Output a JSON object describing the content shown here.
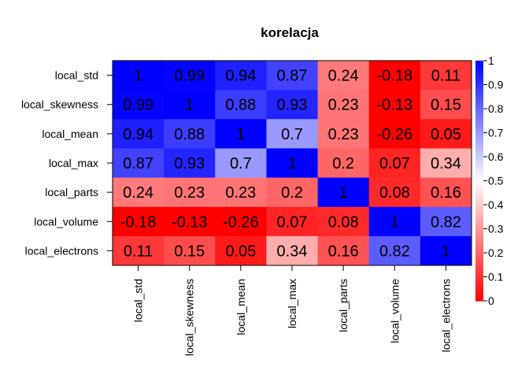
{
  "chart_data": {
    "type": "heatmap",
    "title": "korelacja",
    "rows": [
      "local_std",
      "local_skewness",
      "local_mean",
      "local_max",
      "local_parts",
      "local_volume",
      "local_electrons"
    ],
    "columns": [
      "local_std",
      "local_skewness",
      "local_mean",
      "local_max",
      "local_parts",
      "local_volume",
      "local_electrons"
    ],
    "values": [
      [
        1,
        0.99,
        0.94,
        0.87,
        0.24,
        -0.18,
        0.11
      ],
      [
        0.99,
        1,
        0.88,
        0.93,
        0.23,
        -0.13,
        0.15
      ],
      [
        0.94,
        0.88,
        1,
        0.7,
        0.23,
        -0.26,
        0.05
      ],
      [
        0.87,
        0.93,
        0.7,
        1,
        0.2,
        0.07,
        0.34
      ],
      [
        0.24,
        0.23,
        0.23,
        0.2,
        1,
        0.08,
        0.16
      ],
      [
        -0.18,
        -0.13,
        -0.26,
        0.07,
        0.08,
        1,
        0.82
      ],
      [
        0.11,
        0.15,
        0.05,
        0.34,
        0.16,
        0.82,
        1
      ]
    ],
    "value_labels": [
      [
        "1",
        "0.99",
        "0.94",
        "0.87",
        "0.24",
        "-0.18",
        "0.11"
      ],
      [
        "0.99",
        "1",
        "0.88",
        "0.93",
        "0.23",
        "-0.13",
        "0.15"
      ],
      [
        "0.94",
        "0.88",
        "1",
        "0.7",
        "0.23",
        "-0.26",
        "0.05"
      ],
      [
        "0.87",
        "0.93",
        "0.7",
        "1",
        "0.2",
        "0.07",
        "0.34"
      ],
      [
        "0.24",
        "0.23",
        "0.23",
        "0.2",
        "1",
        "0.08",
        "0.16"
      ],
      [
        "-0.18",
        "-0.13",
        "-0.26",
        "0.07",
        "0.08",
        "1",
        "0.82"
      ],
      [
        "0.11",
        "0.15",
        "0.05",
        "0.34",
        "0.16",
        "0.82",
        "1"
      ]
    ],
    "colorbar": {
      "range": [
        0,
        1
      ],
      "ticks": [
        "0",
        "0.1",
        "0.2",
        "0.3",
        "0.4",
        "0.5",
        "0.6",
        "0.7",
        "0.8",
        "0.9",
        "1"
      ],
      "low_color": "#ff0000",
      "mid_color": "#ffffff",
      "high_color": "#0000ff"
    }
  }
}
